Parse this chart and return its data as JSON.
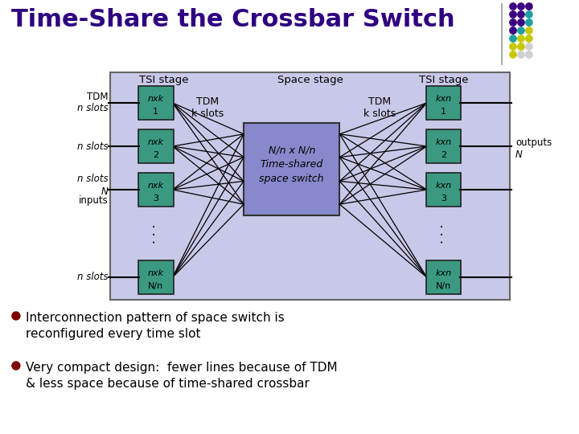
{
  "title": "Time-Share the Crossbar Switch",
  "title_color": "#2E0080",
  "bg_color": "#FFFFFF",
  "diagram_bg": "#C8C8E8",
  "space_switch_bg": "#8888CC",
  "tsi_box_color": "#3A9980",
  "bullet_color": "#800000",
  "bullet_text1": "Interconnection pattern of space switch is\nreconfigured every time slot",
  "bullet_text2": "Very compact design:  fewer lines because of TDM\n& less space because of time-shared crossbar",
  "tsi_stage_label": "TSI stage",
  "space_stage_label": "Space stage",
  "tsi_stage_label_r": "TSI stage",
  "tsi_boxes_left": [
    "nxk\n1",
    "nxk\n2",
    "nxk\n3",
    "nxk\nN/n"
  ],
  "tsi_boxes_right": [
    "kxn\n1",
    "kxn\n2",
    "kxn\n3",
    "kxn\nN/n"
  ],
  "center_text": "N/n x N/n\nTime-shared\nspace switch",
  "tdm_left": "TDM\nk slots",
  "tdm_right": "TDM\nk slots",
  "dot_grid": [
    [
      "#3B0080",
      "#3B0080",
      "#3B0080"
    ],
    [
      "#3B0080",
      "#3B0080",
      "#20A0A0"
    ],
    [
      "#3B0080",
      "#3B0080",
      "#20A0A0"
    ],
    [
      "#3B0080",
      "#20A0A0",
      "#C8C800"
    ],
    [
      "#20A0A0",
      "#C8C800",
      "#C8C800"
    ],
    [
      "#C8C800",
      "#C8C800",
      "#D0D0D0"
    ],
    [
      "#C8C800",
      "#D0D0D0",
      "#D0D0D0"
    ]
  ]
}
